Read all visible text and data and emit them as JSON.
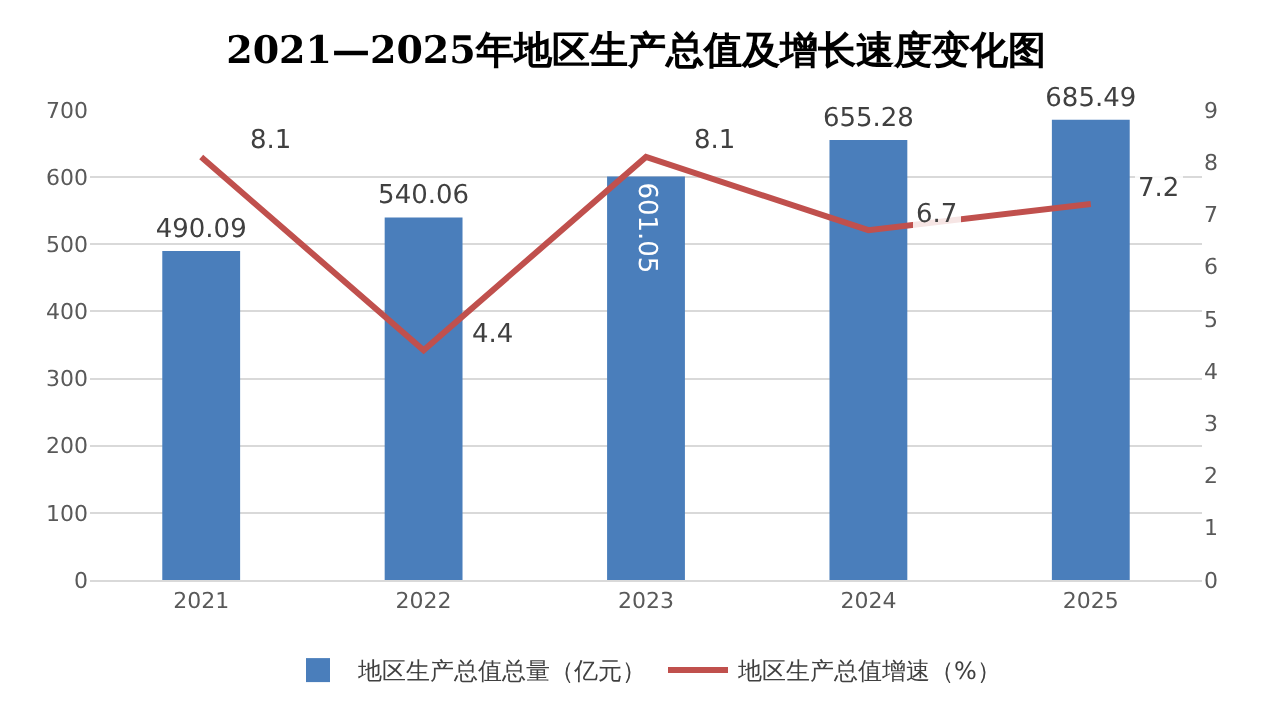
{
  "chart_data": {
    "type": "bar",
    "title": "2021—2025年地区生产总值及增长速度变化图",
    "categories": [
      "2021",
      "2022",
      "2023",
      "2024",
      "2025"
    ],
    "series": [
      {
        "name": "地区生产总值总量（亿元）",
        "color": "#4a7ebb",
        "values": [
          490.09,
          540.06,
          601.05,
          655.28,
          685.49
        ]
      },
      {
        "name": "地区生产总值增速（%）",
        "type": "line",
        "axis": "y2",
        "color": "#c0504d",
        "values": [
          8.1,
          4.4,
          8.1,
          6.7,
          7.2
        ]
      }
    ],
    "ylim": [
      0,
      700
    ],
    "yticks": [
      0,
      100,
      200,
      300,
      400,
      500,
      600,
      700
    ],
    "y2lim": [
      0,
      9
    ],
    "y2ticks": [
      0,
      1,
      2,
      3,
      4,
      5,
      6,
      7,
      8,
      9
    ],
    "grid": "y",
    "legend": "bottom",
    "data_labels": true,
    "marker": "none",
    "line_style": "solid"
  }
}
